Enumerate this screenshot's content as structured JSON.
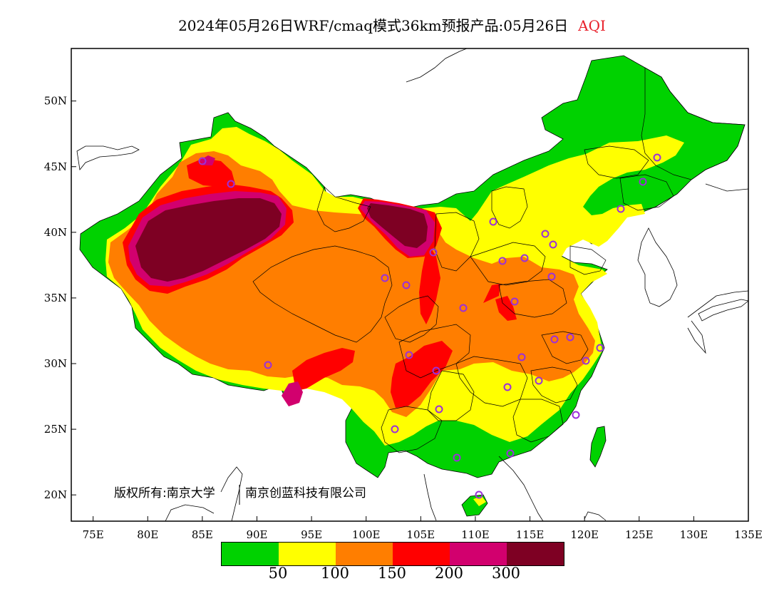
{
  "title": {
    "text": "2024年05月26日WRF/cmaq模式36km预报产品:05月26日",
    "variable": "AQI",
    "variable_color": "#e8202a"
  },
  "axes": {
    "x_ticks": [
      "75E",
      "80E",
      "85E",
      "90E",
      "95E",
      "100E",
      "105E",
      "110E",
      "115E",
      "120E",
      "125E",
      "130E",
      "135E"
    ],
    "x_values": [
      75,
      80,
      85,
      90,
      95,
      100,
      105,
      110,
      115,
      120,
      125,
      130,
      135
    ],
    "y_ticks": [
      "50N",
      "45N",
      "40N",
      "35N",
      "30N",
      "25N",
      "20N"
    ],
    "y_values": [
      50,
      45,
      40,
      35,
      30,
      25,
      20
    ],
    "lon_range": [
      73,
      135
    ],
    "lat_range": [
      18,
      54
    ]
  },
  "copyright": {
    "left": "版权所有:南京大学",
    "right": "南京创蓝科技有限公司"
  },
  "legend": {
    "colors": [
      "#00d200",
      "#ffff00",
      "#ff7e00",
      "#ff0000",
      "#d2006e",
      "#7e0023"
    ],
    "labels": [
      "50",
      "100",
      "150",
      "200",
      "300"
    ]
  },
  "map_colors": {
    "good": "#00d200",
    "moderate": "#ffff00",
    "sensitive": "#ff7e00",
    "unhealthy": "#ff0000",
    "very_unhealthy": "#d2006e",
    "hazardous": "#7e0023",
    "station_marker": "#9b30d9"
  }
}
